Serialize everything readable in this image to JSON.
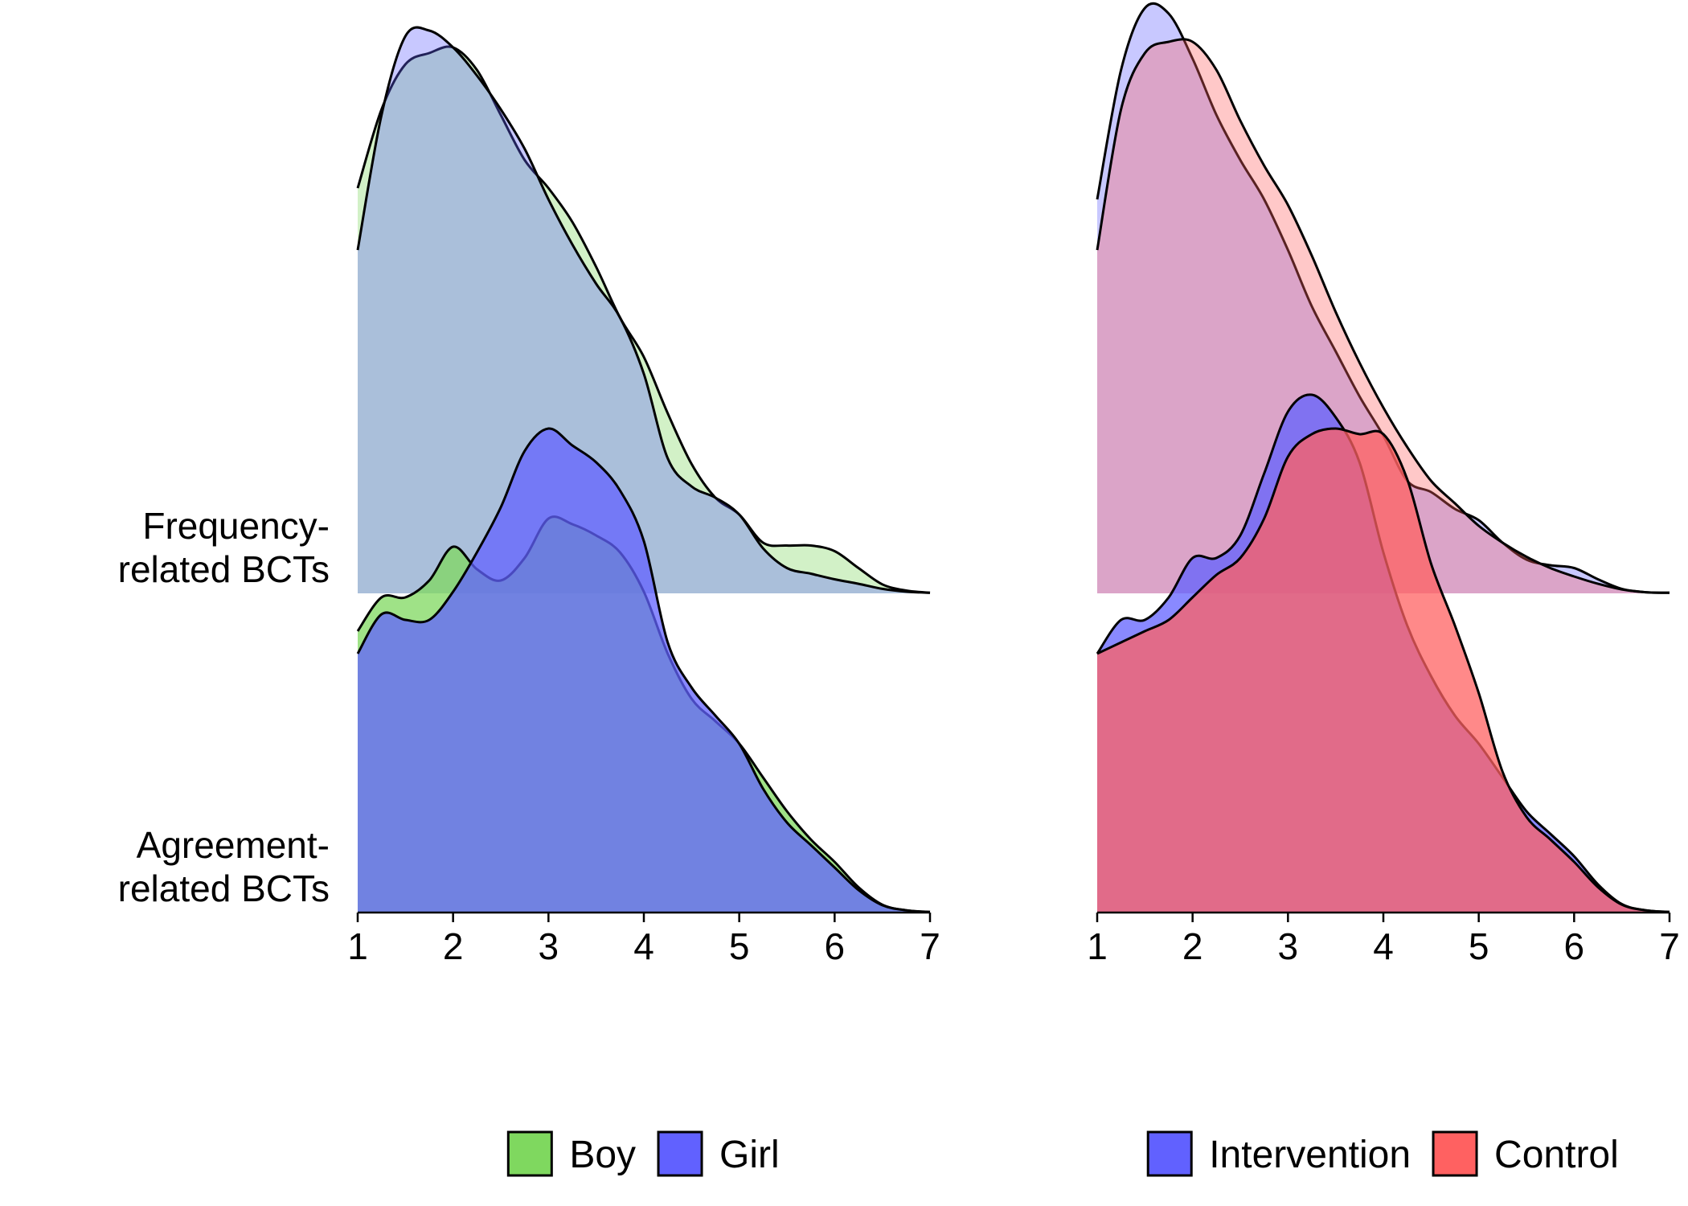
{
  "chart_data": [
    {
      "type": "area",
      "subtype": "ridgeline-density",
      "xlim": [
        1,
        7
      ],
      "x_ticks": [
        1,
        2,
        3,
        4,
        5,
        6,
        7
      ],
      "rows": [
        {
          "label": [
            "Frequency-",
            "related BCTs"
          ]
        },
        {
          "label": [
            "Agreement-",
            "related BCTs"
          ]
        }
      ],
      "legend_placement": "bottom",
      "series": [
        {
          "name": "Boy",
          "color": "#7FD85F"
        },
        {
          "name": "Girl",
          "color": "#6161FF"
        }
      ],
      "densities": {
        "Frequency-related BCTs": {
          "Boy": {
            "x": [
              1,
              1.25,
              1.5,
              1.75,
              2,
              2.25,
              2.5,
              2.75,
              3,
              3.25,
              3.5,
              3.75,
              4,
              4.25,
              4.5,
              4.75,
              5,
              5.25,
              5.5,
              5.75,
              6,
              6.25,
              6.5,
              6.75,
              7
            ],
            "y": [
              0.72,
              0.86,
              0.94,
              0.96,
              0.97,
              0.93,
              0.85,
              0.77,
              0.72,
              0.66,
              0.58,
              0.49,
              0.42,
              0.32,
              0.23,
              0.17,
              0.14,
              0.09,
              0.085,
              0.085,
              0.075,
              0.045,
              0.016,
              0.005,
              0.001
            ]
          },
          "Girl": {
            "x": [
              1,
              1.25,
              1.5,
              1.75,
              2,
              2.25,
              2.5,
              2.75,
              3,
              3.25,
              3.5,
              3.75,
              4,
              4.25,
              4.5,
              4.75,
              5,
              5.25,
              5.5,
              5.75,
              6,
              6.25,
              6.5,
              6.75,
              7
            ],
            "y": [
              0.61,
              0.85,
              0.99,
              1.0,
              0.97,
              0.92,
              0.86,
              0.79,
              0.7,
              0.62,
              0.55,
              0.49,
              0.39,
              0.24,
              0.19,
              0.17,
              0.14,
              0.08,
              0.045,
              0.035,
              0.025,
              0.017,
              0.008,
              0.003,
              0.001
            ]
          }
        },
        "Agreement-related BCTs": {
          "Boy": {
            "x": [
              1,
              1.25,
              1.5,
              1.75,
              2,
              2.25,
              2.5,
              2.75,
              3,
              3.25,
              3.5,
              3.75,
              4,
              4.25,
              4.5,
              4.75,
              5,
              5.25,
              5.5,
              5.75,
              6,
              6.25,
              6.5,
              6.75,
              7
            ],
            "y": [
              0.5,
              0.56,
              0.56,
              0.59,
              0.65,
              0.61,
              0.59,
              0.63,
              0.7,
              0.69,
              0.67,
              0.64,
              0.57,
              0.46,
              0.38,
              0.34,
              0.3,
              0.24,
              0.18,
              0.13,
              0.09,
              0.045,
              0.014,
              0.004,
              0.001
            ]
          },
          "Girl": {
            "x": [
              1,
              1.25,
              1.5,
              1.75,
              2,
              2.25,
              2.5,
              2.75,
              3,
              3.25,
              3.5,
              3.75,
              4,
              4.25,
              4.5,
              4.75,
              5,
              5.25,
              5.5,
              5.75,
              6,
              6.25,
              6.5,
              6.75,
              7
            ],
            "y": [
              0.46,
              0.53,
              0.52,
              0.52,
              0.57,
              0.64,
              0.72,
              0.82,
              0.86,
              0.83,
              0.8,
              0.75,
              0.66,
              0.48,
              0.4,
              0.35,
              0.3,
              0.22,
              0.16,
              0.12,
              0.08,
              0.04,
              0.013,
              0.004,
              0.001
            ]
          }
        }
      }
    },
    {
      "type": "area",
      "subtype": "ridgeline-density",
      "xlim": [
        1,
        7
      ],
      "x_ticks": [
        1,
        2,
        3,
        4,
        5,
        6,
        7
      ],
      "rows": [
        {
          "label": [
            "Frequency-",
            "related BCTs"
          ]
        },
        {
          "label": [
            "Agreement-",
            "related BCTs"
          ]
        }
      ],
      "legend_placement": "bottom",
      "series": [
        {
          "name": "Intervention",
          "color": "#6161FF"
        },
        {
          "name": "Control",
          "color": "#FF6161"
        }
      ],
      "densities": {
        "Frequency-related BCTs": {
          "Intervention": {
            "x": [
              1,
              1.25,
              1.5,
              1.75,
              2,
              2.25,
              2.5,
              2.75,
              3,
              3.25,
              3.5,
              3.75,
              4,
              4.25,
              4.5,
              4.75,
              5,
              5.25,
              5.5,
              5.75,
              6,
              6.25,
              6.5,
              6.75,
              7
            ],
            "y": [
              0.7,
              0.93,
              1.04,
              1.03,
              0.95,
              0.85,
              0.77,
              0.7,
              0.61,
              0.51,
              0.43,
              0.35,
              0.28,
              0.2,
              0.18,
              0.15,
              0.13,
              0.09,
              0.06,
              0.05,
              0.045,
              0.025,
              0.008,
              0.002,
              0.001
            ]
          },
          "Control": {
            "x": [
              1,
              1.25,
              1.5,
              1.75,
              2,
              2.25,
              2.5,
              2.75,
              3,
              3.25,
              3.5,
              3.75,
              4,
              4.25,
              4.5,
              4.75,
              5,
              5.25,
              5.5,
              5.75,
              6,
              6.25,
              6.5,
              6.75,
              7
            ],
            "y": [
              0.61,
              0.86,
              0.96,
              0.98,
              0.98,
              0.93,
              0.84,
              0.76,
              0.69,
              0.6,
              0.5,
              0.41,
              0.33,
              0.26,
              0.2,
              0.16,
              0.12,
              0.09,
              0.065,
              0.045,
              0.03,
              0.017,
              0.007,
              0.002,
              0.001
            ]
          }
        },
        "Agreement-related BCTs": {
          "Intervention": {
            "x": [
              1,
              1.25,
              1.5,
              1.75,
              2,
              2.25,
              2.5,
              2.75,
              3,
              3.25,
              3.5,
              3.75,
              4,
              4.25,
              4.5,
              4.75,
              5,
              5.25,
              5.5,
              5.75,
              6,
              6.25,
              6.5,
              6.75,
              7
            ],
            "y": [
              0.46,
              0.52,
              0.52,
              0.56,
              0.63,
              0.63,
              0.67,
              0.78,
              0.89,
              0.92,
              0.88,
              0.8,
              0.64,
              0.51,
              0.42,
              0.35,
              0.3,
              0.24,
              0.18,
              0.14,
              0.1,
              0.05,
              0.015,
              0.004,
              0.001
            ]
          },
          "Control": {
            "x": [
              1,
              1.25,
              1.5,
              1.75,
              2,
              2.25,
              2.5,
              2.75,
              3,
              3.25,
              3.5,
              3.75,
              4,
              4.25,
              4.5,
              4.75,
              5,
              5.25,
              5.5,
              5.75,
              6,
              6.25,
              6.5,
              6.75,
              7
            ],
            "y": [
              0.46,
              0.48,
              0.5,
              0.52,
              0.56,
              0.6,
              0.63,
              0.7,
              0.81,
              0.85,
              0.86,
              0.85,
              0.85,
              0.77,
              0.62,
              0.51,
              0.39,
              0.25,
              0.17,
              0.13,
              0.09,
              0.045,
              0.014,
              0.004,
              0.001
            ]
          }
        }
      }
    }
  ]
}
